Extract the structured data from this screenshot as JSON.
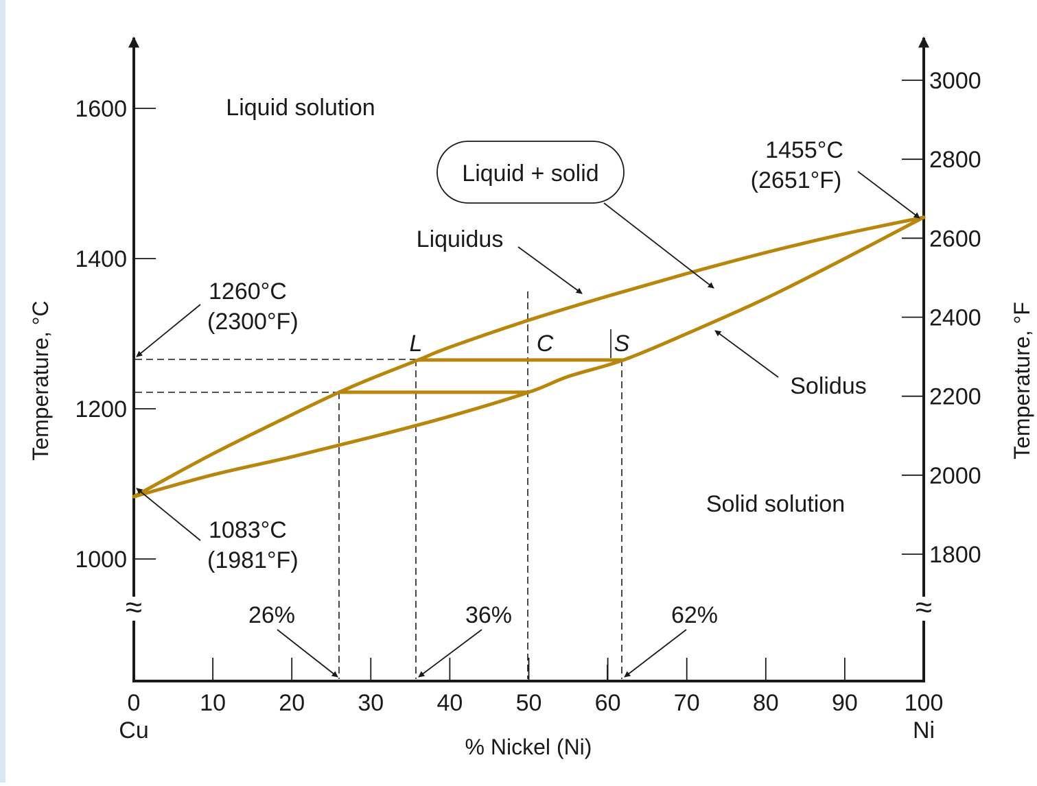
{
  "chart_data": {
    "type": "line",
    "title": "",
    "xlabel": "% Nickel (Ni)",
    "x_end_labels": {
      "left": "Cu",
      "right": "Ni"
    },
    "ylabel_left": "Temperature, °C",
    "ylabel_right": "Temperature, °F",
    "xlim": [
      0,
      100
    ],
    "ylim_celsius": [
      1000,
      1600
    ],
    "ylim_fahrenheit": [
      1800,
      3000
    ],
    "x_ticks": [
      "0",
      "10",
      "20",
      "30",
      "40",
      "50",
      "60",
      "70",
      "80",
      "90",
      "100"
    ],
    "y_ticks_left": [
      "1000",
      "1200",
      "1400",
      "1600"
    ],
    "y_ticks_right": [
      "1800",
      "2000",
      "2200",
      "2400",
      "2600",
      "2800",
      "3000"
    ],
    "line_color": "#b8860b",
    "series": [
      {
        "name": "Liquidus",
        "points": [
          [
            0,
            1083
          ],
          [
            10,
            1140
          ],
          [
            20,
            1192
          ],
          [
            26,
            1222
          ],
          [
            30,
            1240
          ],
          [
            36,
            1265
          ],
          [
            40,
            1282
          ],
          [
            50,
            1318
          ],
          [
            60,
            1350
          ],
          [
            70,
            1380
          ],
          [
            80,
            1408
          ],
          [
            90,
            1433
          ],
          [
            100,
            1455
          ]
        ]
      },
      {
        "name": "Solidus",
        "points": [
          [
            0,
            1083
          ],
          [
            10,
            1112
          ],
          [
            20,
            1136
          ],
          [
            30,
            1162
          ],
          [
            40,
            1190
          ],
          [
            50,
            1222
          ],
          [
            55,
            1243
          ],
          [
            62,
            1265
          ],
          [
            70,
            1300
          ],
          [
            80,
            1347
          ],
          [
            90,
            1400
          ],
          [
            100,
            1455
          ]
        ]
      }
    ],
    "tie_lines": [
      {
        "x": [
          36,
          62
        ],
        "temp": 1265
      },
      {
        "x": [
          26,
          50
        ],
        "temp": 1222
      }
    ],
    "region_labels": [
      "Liquid solution",
      "Liquid + solid",
      "Solid solution"
    ],
    "curve_labels": [
      "Liquidus",
      "Solidus"
    ],
    "point_labels": [
      "L",
      "C",
      "S"
    ],
    "annotations": [
      {
        "celsius": "1455°C",
        "fahrenheit": "(2651°F)"
      },
      {
        "celsius": "1260°C",
        "fahrenheit": "(2300°F)"
      },
      {
        "celsius": "1083°C",
        "fahrenheit": "(1981°F)"
      }
    ],
    "composition_markers": [
      "26%",
      "36%",
      "62%"
    ],
    "axis_break_symbol": "≈"
  }
}
